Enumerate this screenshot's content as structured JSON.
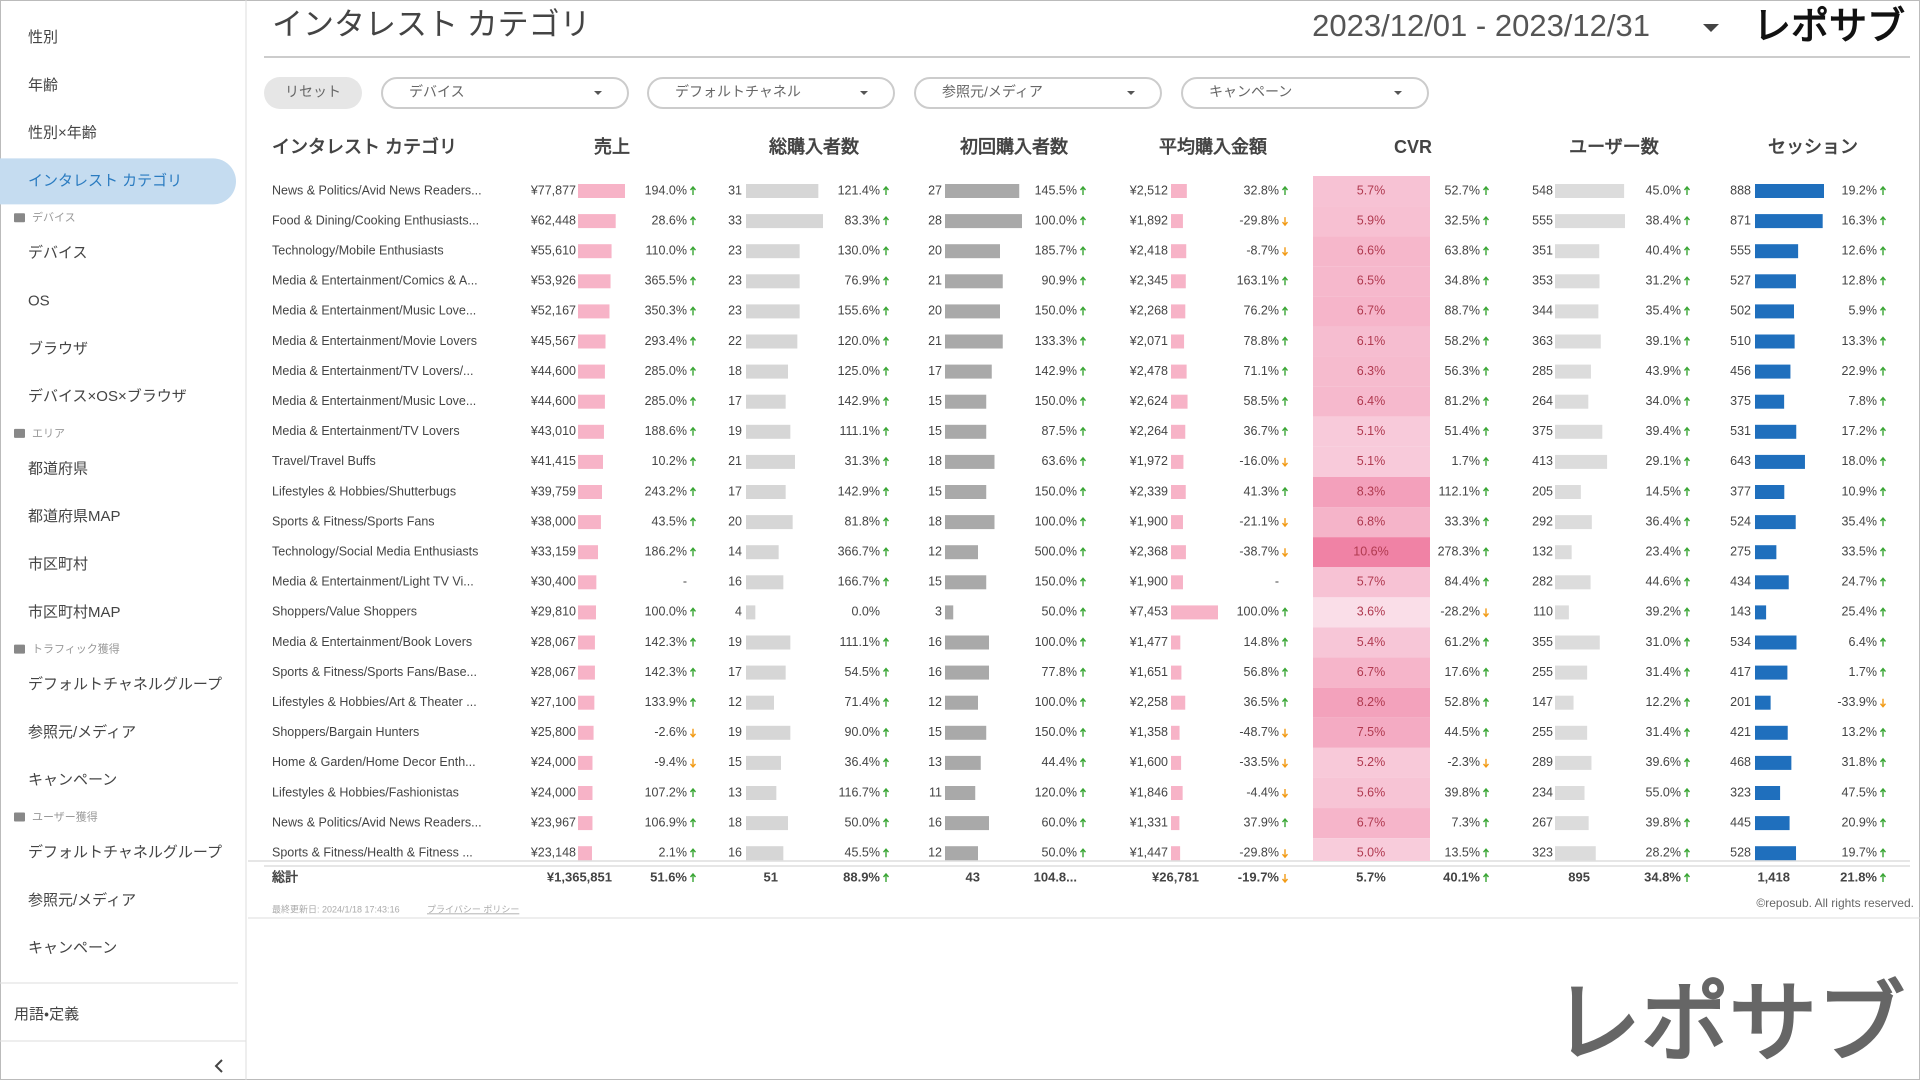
{
  "sidebar": {
    "groups": [
      {
        "items": [
          "性別",
          "年齢",
          "性別×年齢",
          "インタレスト カテゴリ"
        ]
      },
      {
        "heading": "デバイス",
        "items": [
          "デバイス",
          "OS",
          "ブラウザ",
          "デバイス×OS×ブラウザ"
        ]
      },
      {
        "heading": "エリア",
        "items": [
          "都道府県",
          "都道府県MAP",
          "市区町村",
          "市区町村MAP"
        ]
      },
      {
        "heading": "トラフィック獲得",
        "items": [
          "デフォルトチャネルグループ",
          "参照元/メディア",
          "キャンペーン"
        ]
      },
      {
        "heading": "ユーザー獲得",
        "items": [
          "デフォルトチャネルグループ",
          "参照元/メディア",
          "キャンペーン"
        ]
      }
    ],
    "glossary": "用語・定義"
  },
  "header": {
    "title": "インタレスト カテゴリ",
    "date_range": "2023/12/01 - 2023/12/31",
    "logo": "レポサブ"
  },
  "filters": {
    "reset": "リセット",
    "dropdowns": [
      "デバイス",
      "デフォルトチャネル",
      "参照元/メディア",
      "キャンペーン"
    ]
  },
  "table": {
    "columns": [
      "インタレスト カテゴリ",
      "売上",
      "総購入者数",
      "初回購入者数",
      "平均購入金額",
      "CVR",
      "ユーザー数",
      "セッション"
    ],
    "rows": [
      [
        "News & Politics/Avid News Readers...",
        "¥77,877",
        "194.0%",
        "31",
        "121.4%",
        "27",
        "145.5%",
        "¥2,512",
        "32.8%",
        "5.7%",
        "52.7%",
        "548",
        "45.0%",
        "888",
        "19.2%"
      ],
      [
        "Food & Dining/Cooking Enthusiasts...",
        "¥62,448",
        "28.6%",
        "33",
        "83.3%",
        "28",
        "100.0%",
        "¥1,892",
        "-29.8%",
        "5.9%",
        "32.5%",
        "555",
        "38.4%",
        "871",
        "16.3%"
      ],
      [
        "Technology/Mobile Enthusiasts",
        "¥55,610",
        "110.0%",
        "23",
        "130.0%",
        "20",
        "185.7%",
        "¥2,418",
        "-8.7%",
        "6.6%",
        "63.8%",
        "351",
        "40.4%",
        "555",
        "12.6%"
      ],
      [
        "Media & Entertainment/Comics & A...",
        "¥53,926",
        "365.5%",
        "23",
        "76.9%",
        "21",
        "90.9%",
        "¥2,345",
        "163.1%",
        "6.5%",
        "34.8%",
        "353",
        "31.2%",
        "527",
        "12.8%"
      ],
      [
        "Media & Entertainment/Music Love...",
        "¥52,167",
        "350.3%",
        "23",
        "155.6%",
        "20",
        "150.0%",
        "¥2,268",
        "76.2%",
        "6.7%",
        "88.7%",
        "344",
        "35.4%",
        "502",
        "5.9%"
      ],
      [
        "Media & Entertainment/Movie Lovers",
        "¥45,567",
        "293.4%",
        "22",
        "120.0%",
        "21",
        "133.3%",
        "¥2,071",
        "78.8%",
        "6.1%",
        "58.2%",
        "363",
        "39.1%",
        "510",
        "13.3%"
      ],
      [
        "Media & Entertainment/TV Lovers/...",
        "¥44,600",
        "285.0%",
        "18",
        "125.0%",
        "17",
        "142.9%",
        "¥2,478",
        "71.1%",
        "6.3%",
        "56.3%",
        "285",
        "43.9%",
        "456",
        "22.9%"
      ],
      [
        "Media & Entertainment/Music Love...",
        "¥44,600",
        "285.0%",
        "17",
        "142.9%",
        "15",
        "150.0%",
        "¥2,624",
        "58.5%",
        "6.4%",
        "81.2%",
        "264",
        "34.0%",
        "375",
        "7.8%"
      ],
      [
        "Media & Entertainment/TV Lovers",
        "¥43,010",
        "188.6%",
        "19",
        "111.1%",
        "15",
        "87.5%",
        "¥2,264",
        "36.7%",
        "5.1%",
        "51.4%",
        "375",
        "39.4%",
        "531",
        "17.2%"
      ],
      [
        "Travel/Travel Buffs",
        "¥41,415",
        "10.2%",
        "21",
        "31.3%",
        "18",
        "63.6%",
        "¥1,972",
        "-16.0%",
        "5.1%",
        "1.7%",
        "413",
        "29.1%",
        "643",
        "18.0%"
      ],
      [
        "Lifestyles & Hobbies/Shutterbugs",
        "¥39,759",
        "243.2%",
        "17",
        "142.9%",
        "15",
        "150.0%",
        "¥2,339",
        "41.3%",
        "8.3%",
        "112.1%",
        "205",
        "14.5%",
        "377",
        "10.9%"
      ],
      [
        "Sports & Fitness/Sports Fans",
        "¥38,000",
        "43.5%",
        "20",
        "81.8%",
        "18",
        "100.0%",
        "¥1,900",
        "-21.1%",
        "6.8%",
        "33.3%",
        "292",
        "36.4%",
        "524",
        "35.4%"
      ],
      [
        "Technology/Social Media Enthusiasts",
        "¥33,159",
        "186.2%",
        "14",
        "366.7%",
        "12",
        "500.0%",
        "¥2,368",
        "-38.7%",
        "10.6%",
        "278.3%",
        "132",
        "23.4%",
        "275",
        "33.5%"
      ],
      [
        "Media & Entertainment/Light TV Vi...",
        "¥30,400",
        "-",
        "16",
        "166.7%",
        "15",
        "150.0%",
        "¥1,900",
        "-",
        "5.7%",
        "84.4%",
        "282",
        "44.6%",
        "434",
        "24.7%"
      ],
      [
        "Shoppers/Value Shoppers",
        "¥29,810",
        "100.0%",
        "4",
        "0.0%",
        "3",
        "50.0%",
        "¥7,453",
        "100.0%",
        "3.6%",
        "-28.2%",
        "110",
        "39.2%",
        "143",
        "25.4%"
      ],
      [
        "Media & Entertainment/Book Lovers",
        "¥28,067",
        "142.3%",
        "19",
        "111.1%",
        "16",
        "100.0%",
        "¥1,477",
        "14.8%",
        "5.4%",
        "61.2%",
        "355",
        "31.0%",
        "534",
        "6.4%"
      ],
      [
        "Sports & Fitness/Sports Fans/Base...",
        "¥28,067",
        "142.3%",
        "17",
        "54.5%",
        "16",
        "77.8%",
        "¥1,651",
        "56.8%",
        "6.7%",
        "17.6%",
        "255",
        "31.4%",
        "417",
        "1.7%"
      ],
      [
        "Lifestyles & Hobbies/Art & Theater ...",
        "¥27,100",
        "133.9%",
        "12",
        "71.4%",
        "12",
        "100.0%",
        "¥2,258",
        "36.5%",
        "8.2%",
        "52.8%",
        "147",
        "12.2%",
        "201",
        "-33.9%"
      ],
      [
        "Shoppers/Bargain Hunters",
        "¥25,800",
        "-2.6%",
        "19",
        "90.0%",
        "15",
        "150.0%",
        "¥1,358",
        "-48.7%",
        "7.5%",
        "44.5%",
        "255",
        "31.4%",
        "421",
        "13.2%"
      ],
      [
        "Home & Garden/Home Decor Enth...",
        "¥24,000",
        "-9.4%",
        "15",
        "36.4%",
        "13",
        "44.4%",
        "¥1,600",
        "-33.5%",
        "5.2%",
        "-2.3%",
        "289",
        "39.6%",
        "468",
        "31.8%"
      ],
      [
        "Lifestyles & Hobbies/Fashionistas",
        "¥24,000",
        "107.2%",
        "13",
        "116.7%",
        "11",
        "120.0%",
        "¥1,846",
        "-4.4%",
        "5.6%",
        "39.8%",
        "234",
        "55.0%",
        "323",
        "47.5%"
      ],
      [
        "News & Politics/Avid News Readers...",
        "¥23,967",
        "106.9%",
        "18",
        "50.0%",
        "16",
        "60.0%",
        "¥1,331",
        "37.9%",
        "6.7%",
        "7.3%",
        "267",
        "39.8%",
        "445",
        "20.9%"
      ],
      [
        "Sports & Fitness/Health & Fitness ...",
        "¥23,148",
        "2.1%",
        "16",
        "45.5%",
        "12",
        "50.0%",
        "¥1,447",
        "-29.8%",
        "5.0%",
        "13.5%",
        "323",
        "28.2%",
        "528",
        "19.7%"
      ]
    ],
    "total": [
      "総計",
      "¥1,365,851",
      "51.6%",
      "51",
      "88.9%",
      "43",
      "104.8...",
      "¥26,781",
      "-19.7%",
      "5.7%",
      "40.1%",
      "895",
      "34.8%",
      "1,418",
      "21.8%"
    ]
  },
  "footer": {
    "last_updated": "最終更新日: 2024/1/18 17:43:16",
    "privacy": "プライバシー ポリシー",
    "copyright": "©reposub. All rights reserved."
  },
  "watermark": "レポサブ"
}
